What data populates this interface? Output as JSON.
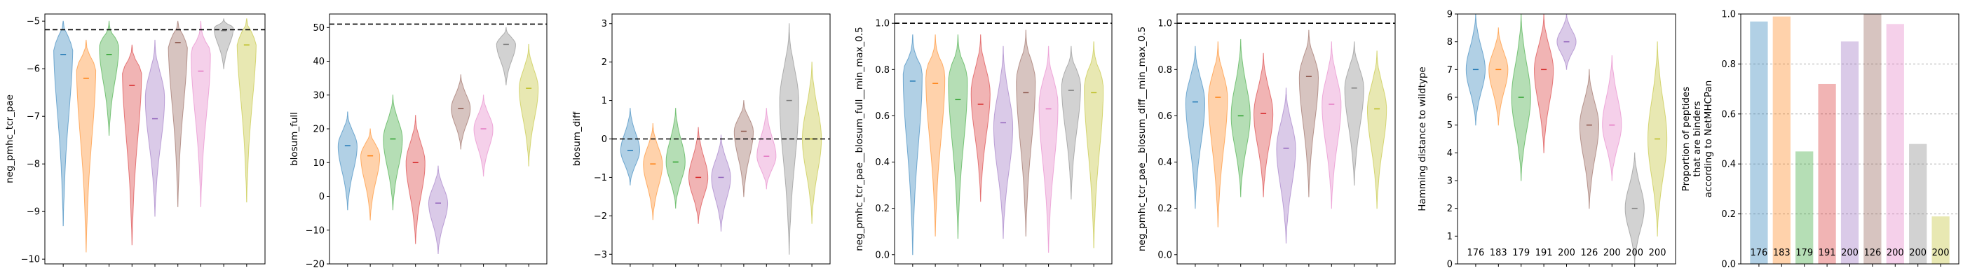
{
  "colors": [
    "#1f77b4",
    "#ff7f0e",
    "#2ca02c",
    "#d62728",
    "#9467bd",
    "#8c564b",
    "#e377c2",
    "#7f7f7f",
    "#bcbd22"
  ],
  "chart_data": [
    {
      "type": "violin",
      "ylabel": "neg_pmhc_tcr_pae",
      "ylim": [
        -10.1,
        -4.85
      ],
      "yticks": [
        -10,
        -9,
        -8,
        -7,
        -6,
        -5
      ],
      "reference_line": -5.18,
      "series": [
        {
          "median": -5.7,
          "min": -9.3,
          "max": -5.0,
          "peak": -5.4
        },
        {
          "median": -6.2,
          "min": -9.85,
          "max": -5.4,
          "peak": -5.9
        },
        {
          "median": -5.7,
          "min": -7.4,
          "max": -5.0,
          "peak": -5.55
        },
        {
          "median": -6.35,
          "min": -9.7,
          "max": -5.5,
          "peak": -6.0
        },
        {
          "median": -7.05,
          "min": -9.1,
          "max": -5.4,
          "peak": -6.6
        },
        {
          "median": -5.45,
          "min": -8.9,
          "max": -5.0,
          "peak": -5.35
        },
        {
          "median": -6.05,
          "min": -8.9,
          "max": -5.0,
          "peak": -5.7
        },
        {
          "median": -5.2,
          "min": -6.0,
          "max": -4.95,
          "peak": -5.15
        },
        {
          "median": -5.5,
          "min": -8.8,
          "max": -4.95,
          "peak": -5.3
        }
      ]
    },
    {
      "type": "violin",
      "ylabel": "blosum_full",
      "ylim": [
        -20,
        54
      ],
      "yticks": [
        -20,
        -10,
        0,
        10,
        20,
        30,
        40,
        50
      ],
      "reference_line": 51,
      "series": [
        {
          "median": 15,
          "min": -4,
          "max": 25,
          "peak": 15
        },
        {
          "median": 12,
          "min": -7,
          "max": 20,
          "peak": 12
        },
        {
          "median": 17,
          "min": -4,
          "max": 30,
          "peak": 17
        },
        {
          "median": 10,
          "min": -14,
          "max": 24,
          "peak": 10
        },
        {
          "median": -2,
          "min": -17,
          "max": 9,
          "peak": -2
        },
        {
          "median": 26,
          "min": 14,
          "max": 36,
          "peak": 26
        },
        {
          "median": 20,
          "min": 6,
          "max": 30,
          "peak": 20
        },
        {
          "median": 45,
          "min": 33,
          "max": 50,
          "peak": 45
        },
        {
          "median": 32,
          "min": 9,
          "max": 45,
          "peak": 32
        }
      ]
    },
    {
      "type": "violin",
      "ylabel": "blosum_diff",
      "ylim": [
        -3.25,
        3.25
      ],
      "yticks": [
        -3,
        -2,
        -1,
        0,
        1,
        2,
        3
      ],
      "reference_line": 0,
      "series": [
        {
          "median": -0.3,
          "min": -1.2,
          "max": 0.8,
          "peak": -0.3
        },
        {
          "median": -0.65,
          "min": -2.1,
          "max": 0.4,
          "peak": -0.65
        },
        {
          "median": -0.6,
          "min": -1.8,
          "max": 0.8,
          "peak": -0.6
        },
        {
          "median": -1.0,
          "min": -2.2,
          "max": 0.3,
          "peak": -1.0
        },
        {
          "median": -1.0,
          "min": -2.4,
          "max": 0.1,
          "peak": -1.0
        },
        {
          "median": 0.2,
          "min": -1.5,
          "max": 1.0,
          "peak": 0.2
        },
        {
          "median": -0.45,
          "min": -1.3,
          "max": 0.8,
          "peak": -0.45
        },
        {
          "median": 1.0,
          "min": -3.0,
          "max": 3.0,
          "peak": 1.0
        },
        {
          "median": 0.0,
          "min": -2.2,
          "max": 2.0,
          "peak": 0.0
        }
      ]
    },
    {
      "type": "violin",
      "ylabel": "neg_pmhc_tcr_pae__blosum_full__min_max_0.5",
      "ylim": [
        -0.04,
        1.04
      ],
      "yticks": [
        0.0,
        0.2,
        0.4,
        0.6,
        0.8,
        1.0
      ],
      "yticklabels": [
        "0.0",
        "0.2",
        "0.4",
        "0.6",
        "0.8",
        "1.0"
      ],
      "reference_line": 1.0,
      "series": [
        {
          "median": 0.75,
          "min": 0.0,
          "max": 0.95,
          "peak": 0.78
        },
        {
          "median": 0.74,
          "min": 0.08,
          "max": 0.95,
          "peak": 0.77
        },
        {
          "median": 0.67,
          "min": 0.07,
          "max": 0.95,
          "peak": 0.75
        },
        {
          "median": 0.65,
          "min": 0.23,
          "max": 0.95,
          "peak": 0.7
        },
        {
          "median": 0.57,
          "min": 0.07,
          "max": 0.9,
          "peak": 0.55
        },
        {
          "median": 0.7,
          "min": 0.08,
          "max": 0.97,
          "peak": 0.75
        },
        {
          "median": 0.63,
          "min": 0.01,
          "max": 0.9,
          "peak": 0.65
        },
        {
          "median": 0.71,
          "min": 0.24,
          "max": 0.9,
          "peak": 0.73
        },
        {
          "median": 0.7,
          "min": 0.03,
          "max": 0.92,
          "peak": 0.72
        }
      ]
    },
    {
      "type": "violin",
      "ylabel": "neg_pmhc_tcr_pae__blosum_diff__min_max_0.5",
      "ylim": [
        -0.04,
        1.04
      ],
      "yticks": [
        0.0,
        0.2,
        0.4,
        0.6,
        0.8,
        1.0
      ],
      "yticklabels": [
        "0.0",
        "0.2",
        "0.4",
        "0.6",
        "0.8",
        "1.0"
      ],
      "reference_line": 1.0,
      "series": [
        {
          "median": 0.66,
          "min": 0.2,
          "max": 0.9,
          "peak": 0.66
        },
        {
          "median": 0.68,
          "min": 0.12,
          "max": 0.92,
          "peak": 0.68
        },
        {
          "median": 0.6,
          "min": 0.25,
          "max": 0.93,
          "peak": 0.6
        },
        {
          "median": 0.61,
          "min": 0.25,
          "max": 0.87,
          "peak": 0.61
        },
        {
          "median": 0.46,
          "min": 0.05,
          "max": 0.72,
          "peak": 0.46
        },
        {
          "median": 0.77,
          "min": 0.25,
          "max": 0.97,
          "peak": 0.77
        },
        {
          "median": 0.65,
          "min": 0.2,
          "max": 0.92,
          "peak": 0.65
        },
        {
          "median": 0.72,
          "min": 0.3,
          "max": 0.92,
          "peak": 0.72
        },
        {
          "median": 0.63,
          "min": 0.2,
          "max": 0.88,
          "peak": 0.63
        }
      ]
    },
    {
      "type": "violin",
      "ylabel": "Hamming distance to wildtype",
      "ylim": [
        0,
        9
      ],
      "yticks": [
        0,
        1,
        2,
        3,
        4,
        5,
        6,
        7,
        8,
        9
      ],
      "counts": [
        "176",
        "183",
        "179",
        "191",
        "200",
        "126",
        "200",
        "200",
        "200"
      ],
      "series": [
        {
          "median": 7,
          "min": 5,
          "max": 9,
          "peak": 7
        },
        {
          "median": 7,
          "min": 5,
          "max": 8.5,
          "peak": 7
        },
        {
          "median": 6,
          "min": 3,
          "max": 9,
          "peak": 6
        },
        {
          "median": 7,
          "min": 4,
          "max": 9,
          "peak": 7
        },
        {
          "median": 8,
          "min": 7,
          "max": 9,
          "peak": 8
        },
        {
          "median": 5,
          "min": 2,
          "max": 7,
          "peak": 5
        },
        {
          "median": 5,
          "min": 3,
          "max": 7.5,
          "peak": 5
        },
        {
          "median": 2,
          "min": 0,
          "max": 4,
          "peak": 2
        },
        {
          "median": 4.5,
          "min": 1,
          "max": 8,
          "peak": 4.5
        }
      ]
    },
    {
      "type": "bar",
      "ylabel_lines": [
        "Proportion of peptides",
        "that are binders",
        "according to NetMHCPan"
      ],
      "ylim": [
        0,
        1
      ],
      "yticks": [
        0.0,
        0.2,
        0.4,
        0.6,
        0.8,
        1.0
      ],
      "yticklabels": [
        "0.0",
        "0.2",
        "0.4",
        "0.6",
        "0.8",
        "1.0"
      ],
      "grid_lines": [
        0.2,
        0.4,
        0.6,
        0.8
      ],
      "values": [
        0.97,
        0.99,
        0.45,
        0.72,
        0.89,
        1.0,
        0.96,
        0.48,
        0.19
      ],
      "counts": [
        "176",
        "183",
        "179",
        "191",
        "200",
        "126",
        "200",
        "200",
        "200"
      ]
    }
  ]
}
